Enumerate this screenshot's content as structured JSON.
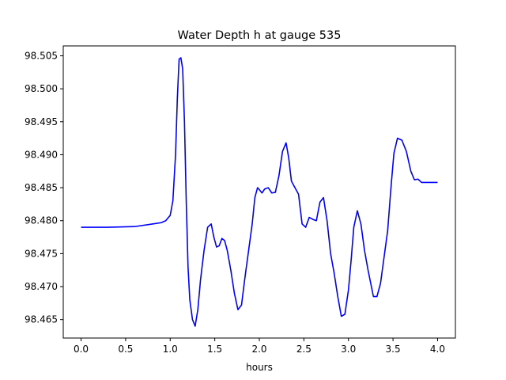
{
  "chart_data": {
    "type": "line",
    "title": "Water Depth h at gauge 535",
    "xlabel": "hours",
    "ylabel": "",
    "xlim": [
      -0.2,
      4.2
    ],
    "ylim": [
      98.4622,
      98.5065
    ],
    "xticks": [
      0.0,
      0.5,
      1.0,
      1.5,
      2.0,
      2.5,
      3.0,
      3.5,
      4.0
    ],
    "xtick_labels": [
      "0.0",
      "0.5",
      "1.0",
      "1.5",
      "2.0",
      "2.5",
      "3.0",
      "3.5",
      "4.0"
    ],
    "yticks": [
      98.465,
      98.47,
      98.475,
      98.48,
      98.485,
      98.49,
      98.495,
      98.5,
      98.505
    ],
    "ytick_labels": [
      "98.465",
      "98.470",
      "98.475",
      "98.480",
      "98.485",
      "98.490",
      "98.495",
      "98.500",
      "98.505"
    ],
    "grid": false,
    "legend": "none",
    "series": [
      {
        "color": "#0000ff",
        "x": [
          0.0,
          0.3,
          0.6,
          0.8,
          0.9,
          0.95,
          1.0,
          1.03,
          1.06,
          1.08,
          1.1,
          1.12,
          1.14,
          1.16,
          1.18,
          1.2,
          1.22,
          1.25,
          1.28,
          1.31,
          1.34,
          1.38,
          1.42,
          1.46,
          1.49,
          1.52,
          1.55,
          1.58,
          1.61,
          1.64,
          1.68,
          1.72,
          1.76,
          1.8,
          1.84,
          1.88,
          1.92,
          1.95,
          1.98,
          2.0,
          2.03,
          2.06,
          2.1,
          2.14,
          2.18,
          2.22,
          2.26,
          2.3,
          2.33,
          2.36,
          2.4,
          2.44,
          2.48,
          2.52,
          2.56,
          2.6,
          2.64,
          2.68,
          2.72,
          2.76,
          2.8,
          2.84,
          2.88,
          2.92,
          2.96,
          3.0,
          3.03,
          3.06,
          3.1,
          3.14,
          3.18,
          3.22,
          3.25,
          3.28,
          3.32,
          3.36,
          3.4,
          3.44,
          3.48,
          3.51,
          3.55,
          3.6,
          3.65,
          3.7,
          3.74,
          3.78,
          3.82,
          3.86,
          3.9,
          3.94,
          3.97,
          4.0
        ],
        "y": [
          98.479,
          98.479,
          98.4791,
          98.4795,
          98.4797,
          98.48,
          98.4808,
          98.483,
          98.49,
          98.4985,
          98.5045,
          98.5047,
          98.503,
          98.495,
          98.483,
          98.473,
          98.468,
          98.465,
          98.464,
          98.4665,
          98.471,
          98.4755,
          98.479,
          98.4795,
          98.4775,
          98.476,
          98.4762,
          98.4773,
          98.477,
          98.4755,
          98.4725,
          98.469,
          98.4665,
          98.4672,
          98.4715,
          98.4755,
          98.4795,
          98.4835,
          98.485,
          98.4847,
          98.4842,
          98.4848,
          98.485,
          98.4842,
          98.4843,
          98.4868,
          98.4905,
          98.4918,
          98.4895,
          98.486,
          98.485,
          98.484,
          98.4795,
          98.479,
          98.4805,
          98.4802,
          98.48,
          98.4828,
          98.4835,
          98.48,
          98.475,
          98.472,
          98.4685,
          98.4655,
          98.4658,
          98.4695,
          98.474,
          98.479,
          98.4815,
          98.4795,
          98.4755,
          98.4725,
          98.4705,
          98.4685,
          98.4685,
          98.4705,
          98.4745,
          98.4785,
          98.4855,
          98.4902,
          98.4925,
          98.4922,
          98.4905,
          98.4875,
          98.4862,
          98.4863,
          98.4858,
          98.4858,
          98.4858,
          98.4858,
          98.4858,
          98.4858
        ]
      }
    ]
  }
}
